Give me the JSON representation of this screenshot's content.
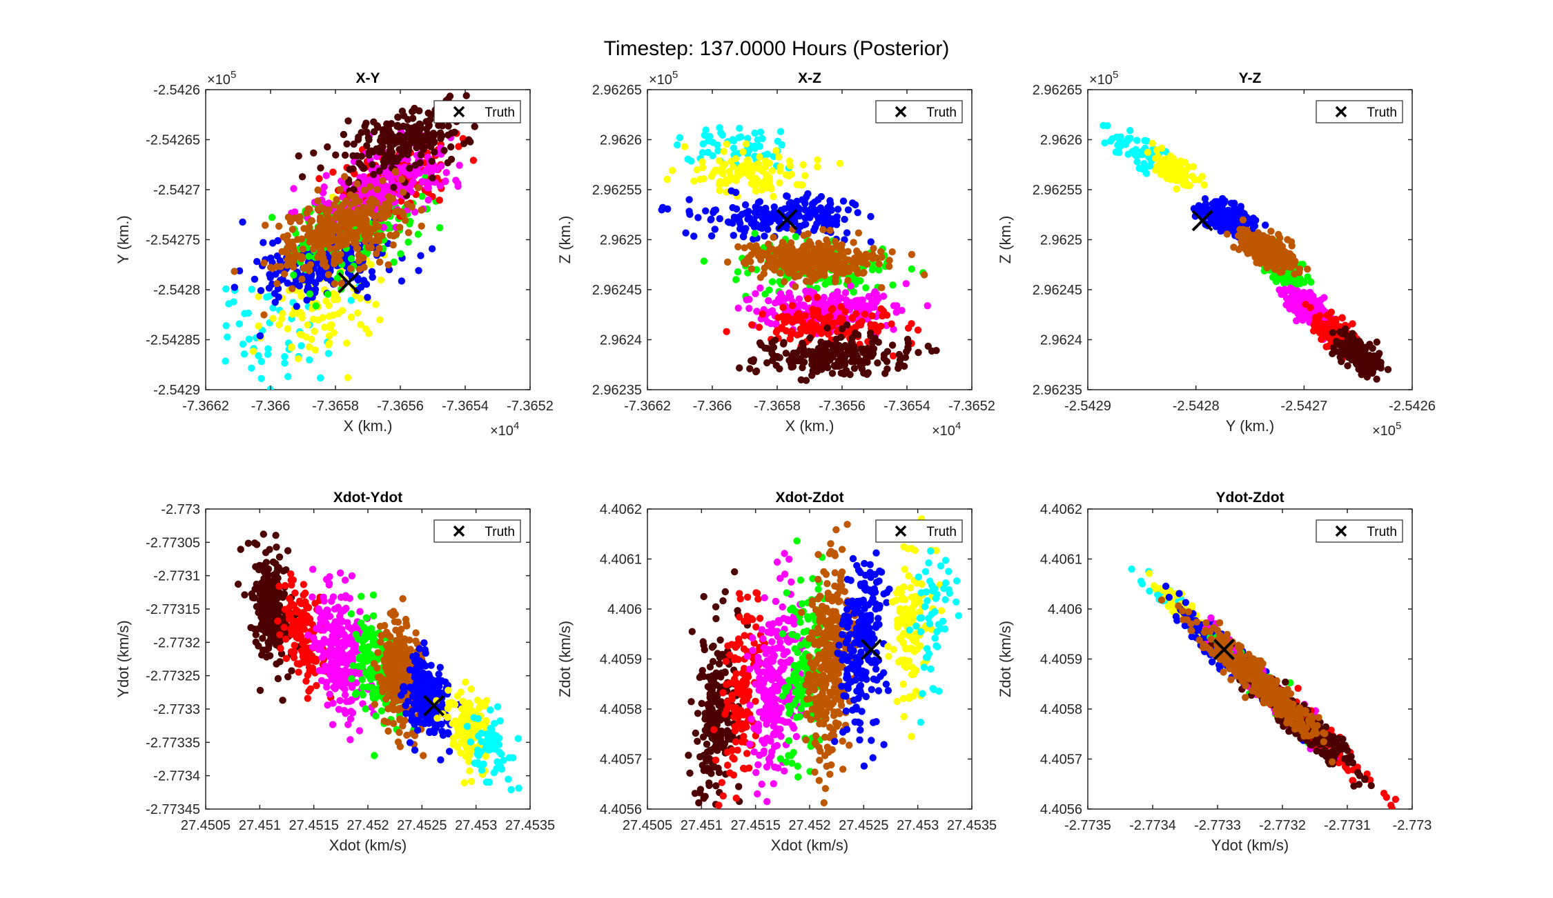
{
  "figure_title": "Timestep: 137.0000 Hours (Posterior)",
  "legend_label": "Truth",
  "colors": {
    "cyan": "#00FFFF",
    "yellow": "#FFFF00",
    "blue": "#0000FF",
    "brown": "#BF5700",
    "green": "#00FF00",
    "magenta": "#FF00FF",
    "red": "#FF0000",
    "maroon": "#4D0000",
    "truth": "#000000",
    "axis": "#262626"
  },
  "chart_data": [
    {
      "type": "scatter",
      "title": "X-Y",
      "xlabel": "X (km.)",
      "ylabel": "Y (km.)",
      "xlim": [
        -7.3662,
        -7.3652
      ],
      "ylim": [
        -2.5429,
        -2.5426
      ],
      "xticks": [
        "-7.3662",
        "-7.366",
        "-7.3658",
        "-7.3656",
        "-7.3654",
        "-7.3652"
      ],
      "yticks": [
        "-2.5429",
        "-2.54285",
        "-2.5428",
        "-2.54275",
        "-2.5427",
        "-2.54265",
        "-2.5426"
      ],
      "xexp": "4",
      "yexp": "5",
      "truth": [
        -7.36576,
        -2.542793
      ],
      "clusters": [
        {
          "color": "cyan",
          "center": [
            -7.366,
            -2.542845
          ],
          "spread": [
            9e-05,
            4.5e-05
          ],
          "corr": 0.3,
          "n": 55
        },
        {
          "color": "yellow",
          "center": [
            -7.36585,
            -2.542815
          ],
          "spread": [
            0.0001,
            3.5e-05
          ],
          "corr": 0.4,
          "n": 110
        },
        {
          "color": "blue",
          "center": [
            -7.36583,
            -2.54277
          ],
          "spread": [
            0.0001,
            2e-05
          ],
          "corr": 0.3,
          "n": 220
        },
        {
          "color": "green",
          "center": [
            -7.36575,
            -2.54274
          ],
          "spread": [
            0.00012,
            2.5e-05
          ],
          "corr": 0.4,
          "n": 140
        },
        {
          "color": "red",
          "center": [
            -7.36563,
            -2.54269
          ],
          "spread": [
            0.0001,
            2.2e-05
          ],
          "corr": 0.5,
          "n": 140
        },
        {
          "color": "magenta",
          "center": [
            -7.36565,
            -2.542695
          ],
          "spread": [
            0.0001,
            2e-05
          ],
          "corr": 0.5,
          "n": 240
        },
        {
          "color": "maroon",
          "center": [
            -7.36558,
            -2.54265
          ],
          "spread": [
            0.0001,
            2e-05
          ],
          "corr": 0.5,
          "n": 220
        },
        {
          "color": "brown",
          "center": [
            -7.36578,
            -2.54274
          ],
          "spread": [
            0.0001,
            2.2e-05
          ],
          "corr": 0.5,
          "n": 340
        }
      ]
    },
    {
      "type": "scatter",
      "title": "X-Z",
      "xlabel": "X (km.)",
      "ylabel": "Z (km.)",
      "xlim": [
        -7.3662,
        -7.3652
      ],
      "ylim": [
        2.96235,
        2.96265
      ],
      "xticks": [
        "-7.3662",
        "-7.366",
        "-7.3658",
        "-7.3656",
        "-7.3654",
        "-7.3652"
      ],
      "yticks": [
        "2.96235",
        "2.9624",
        "2.96245",
        "2.9625",
        "2.96255",
        "2.9626",
        "2.96265"
      ],
      "xexp": "4",
      "yexp": "5",
      "truth": [
        -7.36577,
        2.96252
      ],
      "clusters": [
        {
          "color": "cyan",
          "center": [
            -7.36593,
            2.962595
          ],
          "spread": [
            9e-05,
            1e-05
          ],
          "corr": 0.0,
          "n": 55
        },
        {
          "color": "yellow",
          "center": [
            -7.3659,
            2.962565
          ],
          "spread": [
            0.0001,
            1e-05
          ],
          "corr": 0.0,
          "n": 110
        },
        {
          "color": "blue",
          "center": [
            -7.36578,
            2.962522
          ],
          "spread": [
            0.00012,
            1e-05
          ],
          "corr": 0.0,
          "n": 220
        },
        {
          "color": "green",
          "center": [
            -7.36568,
            2.96247
          ],
          "spread": [
            0.00012,
            1.2e-05
          ],
          "corr": 0.0,
          "n": 140
        },
        {
          "color": "magenta",
          "center": [
            -7.36565,
            2.96243
          ],
          "spread": [
            0.0001,
            1e-05
          ],
          "corr": 0.0,
          "n": 240
        },
        {
          "color": "red",
          "center": [
            -7.36565,
            2.962415
          ],
          "spread": [
            0.00012,
            1e-05
          ],
          "corr": 0.0,
          "n": 140
        },
        {
          "color": "maroon",
          "center": [
            -7.36562,
            2.962385
          ],
          "spread": [
            0.00012,
            1e-05
          ],
          "corr": 0.0,
          "n": 220
        },
        {
          "color": "brown",
          "center": [
            -7.3657,
            2.96248
          ],
          "spread": [
            0.0001,
            1e-05
          ],
          "corr": 0.0,
          "n": 340
        }
      ]
    },
    {
      "type": "scatter",
      "title": "Y-Z",
      "xlabel": "Y (km.)",
      "ylabel": "Z (km.)",
      "xlim": [
        -2.5429,
        -2.5426
      ],
      "ylim": [
        2.96235,
        2.96265
      ],
      "xticks": [
        "-2.5429",
        "-2.5428",
        "-2.5427",
        "-2.5426"
      ],
      "yticks": [
        "2.96235",
        "2.9624",
        "2.96245",
        "2.9625",
        "2.96255",
        "2.9626",
        "2.96265"
      ],
      "xexp": "5",
      "yexp": "5",
      "truth": [
        -2.542794,
        2.962519
      ],
      "clusters": [
        {
          "color": "cyan",
          "center": [
            -2.542855,
            2.96259
          ],
          "spread": [
            1.2e-05,
            1e-05
          ],
          "corr": -0.6,
          "n": 55
        },
        {
          "color": "yellow",
          "center": [
            -2.54282,
            2.96257
          ],
          "spread": [
            1e-05,
            8e-06
          ],
          "corr": -0.6,
          "n": 110
        },
        {
          "color": "blue",
          "center": [
            -2.54277,
            2.962522
          ],
          "spread": [
            1.2e-05,
            8e-06
          ],
          "corr": -0.5,
          "n": 220
        },
        {
          "color": "green",
          "center": [
            -2.54272,
            2.96247
          ],
          "spread": [
            1e-05,
            9e-06
          ],
          "corr": -0.6,
          "n": 140
        },
        {
          "color": "magenta",
          "center": [
            -2.542695,
            2.96243
          ],
          "spread": [
            1e-05,
            9e-06
          ],
          "corr": -0.6,
          "n": 240
        },
        {
          "color": "red",
          "center": [
            -2.54267,
            2.962405
          ],
          "spread": [
            1e-05,
            1e-05
          ],
          "corr": -0.6,
          "n": 140
        },
        {
          "color": "maroon",
          "center": [
            -2.54265,
            2.962385
          ],
          "spread": [
            1e-05,
            9e-06
          ],
          "corr": -0.6,
          "n": 220
        },
        {
          "color": "brown",
          "center": [
            -2.542735,
            2.96249
          ],
          "spread": [
            1.2e-05,
            9e-06
          ],
          "corr": -0.6,
          "n": 340
        }
      ]
    },
    {
      "type": "scatter",
      "title": "Xdot-Ydot",
      "xlabel": "Xdot (km/s)",
      "ylabel": "Ydot (km/s)",
      "xlim": [
        27.4505,
        27.4535
      ],
      "ylim": [
        -2.77345,
        -2.773
      ],
      "xticks": [
        "27.4505",
        "27.451",
        "27.4515",
        "27.452",
        "27.4525",
        "27.453",
        "27.4535"
      ],
      "yticks": [
        "-2.77345",
        "-2.7734",
        "-2.77335",
        "-2.7733",
        "-2.77325",
        "-2.7732",
        "-2.77315",
        "-2.7731",
        "-2.77305",
        "-2.773"
      ],
      "xexp": "",
      "yexp": "",
      "truth": [
        27.45261,
        -2.773295
      ],
      "clusters": [
        {
          "color": "maroon",
          "center": [
            27.45111,
            -2.77315
          ],
          "spread": [
            0.0001,
            4e-05
          ],
          "corr": -0.3,
          "n": 220
        },
        {
          "color": "red",
          "center": [
            27.4514,
            -2.77319
          ],
          "spread": [
            0.0001,
            4e-05
          ],
          "corr": -0.3,
          "n": 140
        },
        {
          "color": "magenta",
          "center": [
            27.45175,
            -2.773215
          ],
          "spread": [
            0.00012,
            4.5e-05
          ],
          "corr": -0.3,
          "n": 240
        },
        {
          "color": "green",
          "center": [
            27.45208,
            -2.77324
          ],
          "spread": [
            0.0001,
            4e-05
          ],
          "corr": -0.3,
          "n": 140
        },
        {
          "color": "brown",
          "center": [
            27.45232,
            -2.77325
          ],
          "spread": [
            0.0001,
            4e-05
          ],
          "corr": -0.3,
          "n": 340
        },
        {
          "color": "blue",
          "center": [
            27.45255,
            -2.77328
          ],
          "spread": [
            0.0001,
            3e-05
          ],
          "corr": -0.3,
          "n": 220
        },
        {
          "color": "yellow",
          "center": [
            27.45293,
            -2.77333
          ],
          "spread": [
            0.0001,
            3e-05
          ],
          "corr": -0.3,
          "n": 110
        },
        {
          "color": "cyan",
          "center": [
            27.45315,
            -2.77336
          ],
          "spread": [
            0.0001,
            3e-05
          ],
          "corr": -0.3,
          "n": 55
        }
      ]
    },
    {
      "type": "scatter",
      "title": "Xdot-Zdot",
      "xlabel": "Xdot (km/s)",
      "ylabel": "Zdot (km/s)",
      "xlim": [
        27.4505,
        27.4535
      ],
      "ylim": [
        4.4056,
        4.4062
      ],
      "xticks": [
        "27.4505",
        "27.451",
        "27.4515",
        "27.452",
        "27.4525",
        "27.453",
        "27.4535"
      ],
      "yticks": [
        "4.4056",
        "4.4057",
        "4.4058",
        "4.4059",
        "4.406",
        "4.4061",
        "4.4062"
      ],
      "xexp": "",
      "yexp": "",
      "truth": [
        27.45257,
        4.405919
      ],
      "clusters": [
        {
          "color": "maroon",
          "center": [
            27.45113,
            4.40579
          ],
          "spread": [
            0.0001,
            9e-05
          ],
          "corr": 0.2,
          "n": 220
        },
        {
          "color": "red",
          "center": [
            27.45138,
            4.40582
          ],
          "spread": [
            0.0001,
            9e-05
          ],
          "corr": 0.2,
          "n": 140
        },
        {
          "color": "magenta",
          "center": [
            27.45168,
            4.40584
          ],
          "spread": [
            0.00012,
            9e-05
          ],
          "corr": 0.2,
          "n": 240
        },
        {
          "color": "green",
          "center": [
            27.45197,
            4.40588
          ],
          "spread": [
            0.0001,
            9e-05
          ],
          "corr": 0.2,
          "n": 140
        },
        {
          "color": "brown",
          "center": [
            27.45218,
            4.4059
          ],
          "spread": [
            0.0001,
            0.0001
          ],
          "corr": 0.2,
          "n": 340
        },
        {
          "color": "blue",
          "center": [
            27.4525,
            4.40594
          ],
          "spread": [
            0.0001,
            9e-05
          ],
          "corr": 0.2,
          "n": 220
        },
        {
          "color": "yellow",
          "center": [
            27.45292,
            4.40597
          ],
          "spread": [
            0.0001,
            8e-05
          ],
          "corr": 0.2,
          "n": 110
        },
        {
          "color": "cyan",
          "center": [
            27.45315,
            4.405995
          ],
          "spread": [
            0.0001,
            8e-05
          ],
          "corr": 0.2,
          "n": 55
        }
      ]
    },
    {
      "type": "scatter",
      "title": "Ydot-Zdot",
      "xlabel": "Ydot (km/s)",
      "ylabel": "Zdot (km/s)",
      "xlim": [
        -2.7735,
        -2.773
      ],
      "ylim": [
        4.4056,
        4.4062
      ],
      "xticks": [
        "-2.7735",
        "-2.7734",
        "-2.7733",
        "-2.7732",
        "-2.7731",
        "-2.773"
      ],
      "yticks": [
        "4.4056",
        "4.4057",
        "4.4058",
        "4.4059",
        "4.406",
        "4.4061",
        "4.4062"
      ],
      "xexp": "",
      "yexp": "",
      "truth": [
        -2.77329,
        4.405919
      ],
      "clusters": [
        {
          "color": "cyan",
          "center": [
            -2.77336,
            4.405995
          ],
          "spread": [
            3e-05,
            4e-05
          ],
          "corr": -0.95,
          "n": 55
        },
        {
          "color": "yellow",
          "center": [
            -2.77333,
            4.405965
          ],
          "spread": [
            3e-05,
            4e-05
          ],
          "corr": -0.95,
          "n": 110
        },
        {
          "color": "blue",
          "center": [
            -2.77327,
            4.40589
          ],
          "spread": [
            4e-05,
            5e-05
          ],
          "corr": -0.95,
          "n": 220
        },
        {
          "color": "green",
          "center": [
            -2.77322,
            4.40583
          ],
          "spread": [
            4e-05,
            5e-05
          ],
          "corr": -0.95,
          "n": 140
        },
        {
          "color": "magenta",
          "center": [
            -2.77321,
            4.405825
          ],
          "spread": [
            4e-05,
            5e-05
          ],
          "corr": -0.95,
          "n": 240
        },
        {
          "color": "red",
          "center": [
            -2.77315,
            4.40575
          ],
          "spread": [
            4e-05,
            5e-05
          ],
          "corr": -0.95,
          "n": 140
        },
        {
          "color": "maroon",
          "center": [
            -2.77317,
            4.405775
          ],
          "spread": [
            5e-05,
            6e-05
          ],
          "corr": -0.95,
          "n": 220
        },
        {
          "color": "brown",
          "center": [
            -2.77324,
            4.40586
          ],
          "spread": [
            5e-05,
            6e-05
          ],
          "corr": -0.95,
          "n": 340
        }
      ]
    }
  ]
}
